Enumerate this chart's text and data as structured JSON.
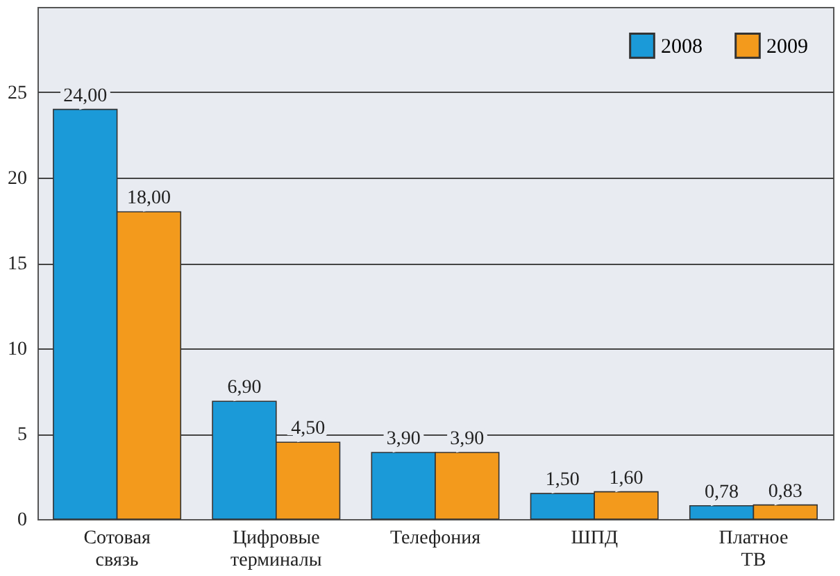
{
  "chart_data": {
    "type": "bar",
    "categories": [
      "Сотовая связь",
      "Цифровые терминалы",
      "Телефония",
      "ШПД",
      "Платное ТВ"
    ],
    "series": [
      {
        "name": "2008",
        "color": "#1b9ad8",
        "values": [
          24.0,
          6.9,
          3.9,
          1.5,
          0.78
        ],
        "value_labels": [
          "24,00",
          "6,90",
          "3,90",
          "1,50",
          "0,78"
        ]
      },
      {
        "name": "2009",
        "color": "#f39a1c",
        "values": [
          18.0,
          4.5,
          3.9,
          1.6,
          0.83
        ],
        "value_labels": [
          "18,00",
          "4,50",
          "3,90",
          "1,60",
          "0,83"
        ]
      }
    ],
    "ylim": [
      0,
      30
    ],
    "yticks": [
      0,
      5,
      10,
      15,
      20,
      25
    ],
    "grid": "y",
    "legend": "top right"
  }
}
